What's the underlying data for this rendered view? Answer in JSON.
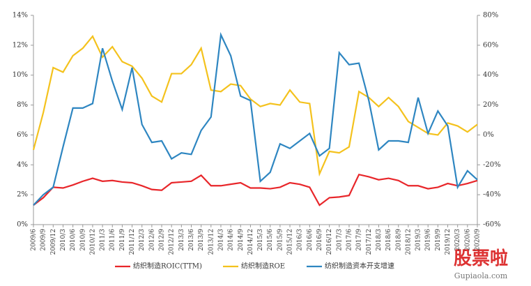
{
  "chart_data": {
    "type": "line",
    "categories": [
      "2009/6",
      "2009/9",
      "2009/12",
      "2010/3",
      "2010/6",
      "2010/9",
      "2010/12",
      "2011/3",
      "2011/6",
      "2011/9",
      "2011/12",
      "2012/3",
      "2012/6",
      "2012/9",
      "2012/12",
      "2013/3",
      "2013/6",
      "2013/9",
      "2013/12",
      "2014/3",
      "2014/6",
      "2014/9",
      "2014/12",
      "2015/3",
      "2015/6",
      "2015/9",
      "2015/12",
      "2016/3",
      "2016/6",
      "2016/9",
      "2016/12",
      "2017/3",
      "2017/6",
      "2017/9",
      "2017/12",
      "2018/3",
      "2018/6",
      "2018/9",
      "2018/12",
      "2019/3",
      "2019/6",
      "2019/9",
      "2019/12",
      "2020/3",
      "2020/6",
      "2020/9"
    ],
    "series": [
      {
        "name": "纺织制造ROIC(TTM)",
        "color": "#e8262a",
        "values": [
          1.3,
          1.8,
          2.5,
          2.45,
          2.65,
          2.9,
          3.1,
          2.9,
          2.95,
          2.85,
          2.8,
          2.6,
          2.35,
          2.3,
          2.8,
          2.85,
          2.9,
          3.3,
          2.6,
          2.6,
          2.7,
          2.8,
          2.45,
          2.45,
          2.4,
          2.5,
          2.8,
          2.7,
          2.5,
          1.3,
          1.8,
          1.85,
          1.95,
          3.35,
          3.2,
          3.0,
          3.1,
          2.95,
          2.6,
          2.6,
          2.4,
          2.5,
          2.75,
          2.6,
          2.75,
          2.95
        ]
      },
      {
        "name": "纺织制造ROE",
        "color": "#f4c21d",
        "values": [
          5.0,
          7.5,
          10.5,
          10.2,
          11.3,
          11.8,
          12.6,
          11.2,
          11.9,
          10.9,
          10.6,
          9.8,
          8.6,
          8.2,
          10.1,
          10.1,
          10.7,
          11.8,
          9.0,
          8.9,
          9.4,
          9.3,
          8.4,
          7.9,
          8.1,
          8.0,
          9.0,
          8.2,
          8.1,
          3.4,
          4.9,
          4.8,
          5.2,
          8.9,
          8.5,
          7.9,
          8.5,
          7.9,
          6.9,
          6.5,
          6.1,
          6.0,
          6.8,
          6.6,
          6.2,
          6.7
        ]
      },
      {
        "name": "纺织制造资本开支增速",
        "color": "#2e86c1",
        "axis": "y2",
        "values": [
          -47,
          -40,
          -35,
          -8,
          18,
          18,
          21,
          58,
          36,
          17,
          45,
          7,
          -5,
          -4,
          -16,
          -12,
          -13,
          3,
          12,
          67,
          53,
          26,
          23,
          -31,
          -25,
          -6,
          -9,
          -4,
          1,
          -14,
          -9,
          55,
          47,
          48,
          23,
          -10,
          -4,
          -4,
          -5,
          25,
          1,
          16,
          6,
          -35,
          -24,
          -30
        ]
      }
    ],
    "ylim": [
      0,
      14
    ],
    "yticks": [
      {
        "value": 0,
        "label": "0%"
      },
      {
        "value": 2,
        "label": "2%"
      },
      {
        "value": 4,
        "label": "4%"
      },
      {
        "value": 6,
        "label": "6%"
      },
      {
        "value": 8,
        "label": "8%"
      },
      {
        "value": 10,
        "label": "10%"
      },
      {
        "value": 12,
        "label": "12%"
      },
      {
        "value": 14,
        "label": "14%"
      }
    ],
    "y2lim": [
      -60,
      80
    ],
    "y2ticks": [
      {
        "value": -60,
        "label": "-60%"
      },
      {
        "value": -40,
        "label": "-40%"
      },
      {
        "value": -20,
        "label": "-20%"
      },
      {
        "value": 0,
        "label": "0%"
      },
      {
        "value": 20,
        "label": "20%"
      },
      {
        "value": 40,
        "label": "40%"
      },
      {
        "value": 60,
        "label": "60%"
      },
      {
        "value": 80,
        "label": "80%"
      }
    ],
    "grid": false,
    "legend": "bottom"
  },
  "watermark": [
    "股票啦",
    "Gupiaola.com"
  ]
}
